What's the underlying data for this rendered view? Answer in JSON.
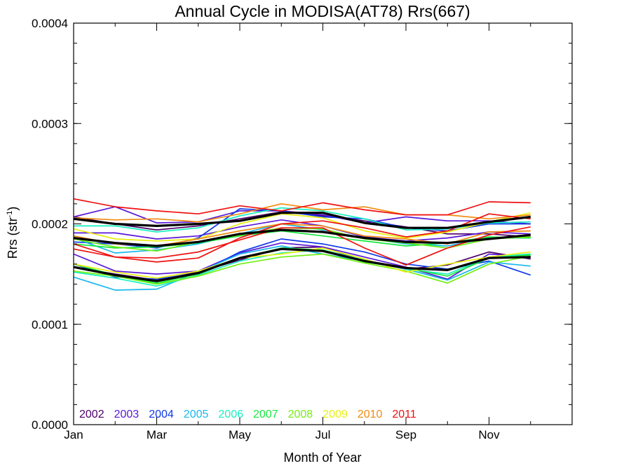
{
  "chart_data": {
    "type": "line",
    "title": "Annual Cycle in MODISA(AT78) Rrs(667)",
    "xlabel": "Month of Year",
    "ylabel": "Rrs (str",
    "ylabel_superscript": "-1",
    "ylabel_close": ")",
    "xlim": [
      1,
      13
    ],
    "ylim": [
      0.0,
      0.0004
    ],
    "y_ticks": [
      0.0,
      0.0001,
      0.0002,
      0.0003,
      0.0004
    ],
    "y_tick_labels": [
      "0.0000",
      "0.0001",
      "0.0002",
      "0.0003",
      "0.0004"
    ],
    "x_ticks": [
      1,
      3,
      5,
      7,
      9,
      11
    ],
    "x_tick_labels": [
      "Jan",
      "Mar",
      "May",
      "Jul",
      "Sep",
      "Nov"
    ],
    "x": [
      1,
      2,
      3,
      4,
      5,
      6,
      7,
      8,
      9,
      10,
      11,
      12
    ],
    "grid": false,
    "legend_position": "bottom-left",
    "legend": [
      {
        "name": "2002",
        "color": "#4b0068"
      },
      {
        "name": "2003",
        "color": "#5a18d8"
      },
      {
        "name": "2004",
        "color": "#1038e8"
      },
      {
        "name": "2005",
        "color": "#18b8ec"
      },
      {
        "name": "2006",
        "color": "#18f0c0"
      },
      {
        "name": "2007",
        "color": "#18e840"
      },
      {
        "name": "2008",
        "color": "#70f010"
      },
      {
        "name": "2009",
        "color": "#e8f010"
      },
      {
        "name": "2010",
        "color": "#f08c10"
      },
      {
        "name": "2011",
        "color": "#f01010"
      }
    ],
    "series": [
      {
        "color": "#4b0068",
        "width": 1.7,
        "values": [
          0.000207,
          0.0002,
          0.000194,
          0.000198,
          0.000205,
          0.000212,
          0.000208,
          0.000203,
          0.000197,
          0.00019,
          0.00019,
          0.000187
        ]
      },
      {
        "color": "#4b0068",
        "width": 1.7,
        "values": [
          0.000157,
          0.00015,
          0.000144,
          0.000152,
          0.000164,
          0.000176,
          0.000177,
          0.000163,
          0.000155,
          0.000159,
          0.000172,
          0.000165
        ]
      },
      {
        "color": "#5a18d8",
        "width": 1.7,
        "values": [
          0.000207,
          0.000217,
          0.000201,
          0.000202,
          0.000213,
          0.000213,
          0.000209,
          0.000201,
          0.000207,
          0.000203,
          0.000203,
          0.0002
        ]
      },
      {
        "color": "#5a18d8",
        "width": 1.7,
        "values": [
          0.00017,
          0.000153,
          0.00015,
          0.000153,
          0.000171,
          0.000181,
          0.000177,
          0.000167,
          0.000157,
          0.000145,
          0.00017,
          0.000167
        ]
      },
      {
        "color": "#5a18d8",
        "width": 1.7,
        "values": [
          0.000191,
          0.000191,
          0.000185,
          0.000188,
          0.000197,
          0.000204,
          0.000198,
          0.000187,
          0.000183,
          0.000186,
          0.000192,
          0.00019
        ]
      },
      {
        "color": "#1038e8",
        "width": 1.7,
        "values": [
          0.000182,
          0.00018,
          0.000176,
          0.000186,
          0.000215,
          0.000213,
          0.000207,
          0.000205,
          0.000196,
          0.000193,
          0.0002,
          0.0002
        ]
      },
      {
        "color": "#1038e8",
        "width": 1.7,
        "values": [
          0.00016,
          0.000147,
          0.000145,
          0.000151,
          0.000172,
          0.000185,
          0.00018,
          0.000172,
          0.00016,
          0.000155,
          0.000163,
          0.000149
        ]
      },
      {
        "color": "#18b8ec",
        "width": 1.7,
        "values": [
          0.000147,
          0.000134,
          0.000135,
          0.000152,
          0.00017,
          0.000178,
          0.00017,
          0.000163,
          0.000155,
          0.000144,
          0.000162,
          0.000158
        ]
      },
      {
        "color": "#18b8ec",
        "width": 1.7,
        "values": [
          0.000186,
          0.000171,
          0.000174,
          0.00018,
          0.00019,
          0.0002,
          0.000194,
          0.000186,
          0.00018,
          0.000178,
          0.000186,
          0.000186
        ]
      },
      {
        "color": "#18f0c0",
        "width": 1.7,
        "values": [
          0.000198,
          0.000198,
          0.000192,
          0.000196,
          0.000208,
          0.000216,
          0.000213,
          0.000205,
          0.000194,
          0.000195,
          0.000201,
          0.000202
        ]
      },
      {
        "color": "#18f0c0",
        "width": 1.7,
        "values": [
          0.000152,
          0.000146,
          0.000138,
          0.000149,
          0.000163,
          0.000171,
          0.000174,
          0.000164,
          0.000155,
          0.00015,
          0.000167,
          0.00017
        ]
      },
      {
        "color": "#18e840",
        "width": 1.7,
        "values": [
          0.00018,
          0.000176,
          0.000177,
          0.000181,
          0.000188,
          0.000193,
          0.000188,
          0.000183,
          0.000178,
          0.000181,
          0.000187,
          0.000186
        ]
      },
      {
        "color": "#18e840",
        "width": 1.7,
        "values": [
          0.00016,
          0.000149,
          0.000141,
          0.00015,
          0.000166,
          0.000176,
          0.000174,
          0.000162,
          0.000156,
          0.000148,
          0.000166,
          0.000169
        ]
      },
      {
        "color": "#70f010",
        "width": 1.7,
        "values": [
          0.000153,
          0.000148,
          0.00014,
          0.000148,
          0.00016,
          0.000167,
          0.00017,
          0.000161,
          0.000153,
          0.000141,
          0.00016,
          0.000168
        ]
      },
      {
        "color": "#70f010",
        "width": 1.7,
        "values": [
          0.000185,
          0.000177,
          0.000173,
          0.000182,
          0.000189,
          0.000196,
          0.000195,
          0.000185,
          0.000181,
          0.000176,
          0.000185,
          0.000187
        ]
      },
      {
        "color": "#e8f010",
        "width": 1.7,
        "values": [
          0.00016,
          0.000152,
          0.000146,
          0.000153,
          0.000166,
          0.00017,
          0.000176,
          0.000165,
          0.000152,
          0.00016,
          0.000167,
          0.000172
        ]
      },
      {
        "color": "#e8f010",
        "width": 1.7,
        "values": [
          0.000195,
          0.000185,
          0.000183,
          0.000185,
          0.0002,
          0.00021,
          0.000206,
          0.000193,
          0.000186,
          0.000192,
          0.000202,
          0.000211
        ]
      },
      {
        "color": "#f08c10",
        "width": 1.7,
        "values": [
          0.000206,
          0.000204,
          0.000205,
          0.000202,
          0.00021,
          0.00022,
          0.000214,
          0.000217,
          0.000209,
          0.000209,
          0.000205,
          0.000209
        ]
      },
      {
        "color": "#f08c10",
        "width": 1.7,
        "values": [
          0.000188,
          0.00018,
          0.000178,
          0.000185,
          0.000193,
          0.0002,
          0.000198,
          0.000188,
          0.000185,
          0.00018,
          0.000192,
          0.000193
        ]
      },
      {
        "color": "#f01010",
        "width": 1.7,
        "values": [
          0.000225,
          0.000217,
          0.000213,
          0.00021,
          0.000218,
          0.000213,
          0.000221,
          0.000214,
          0.000209,
          0.000209,
          0.000222,
          0.000221
        ]
      },
      {
        "color": "#f01010",
        "width": 1.7,
        "values": [
          0.00018,
          0.000167,
          0.000162,
          0.000166,
          0.000186,
          0.0002,
          0.000203,
          0.000196,
          0.000187,
          0.000193,
          0.00021,
          0.000205
        ]
      },
      {
        "color": "#f01010",
        "width": 1.7,
        "values": [
          0.000175,
          0.000167,
          0.000166,
          0.000172,
          0.000184,
          0.000196,
          0.000196,
          0.000176,
          0.000159,
          0.000176,
          0.000189,
          0.000197
        ]
      },
      {
        "color": "#000000",
        "width": 3.2,
        "values": [
          0.000205,
          0.0002,
          0.000198,
          0.0002,
          0.000203,
          0.000211,
          0.000211,
          0.000201,
          0.000196,
          0.000196,
          0.000202,
          0.000207
        ]
      },
      {
        "color": "#000000",
        "width": 3.2,
        "values": [
          0.000186,
          0.000181,
          0.000178,
          0.000182,
          0.00019,
          0.000194,
          0.000192,
          0.000186,
          0.000182,
          0.000181,
          0.000185,
          0.000189
        ]
      },
      {
        "color": "#000000",
        "width": 3.2,
        "values": [
          0.000157,
          0.000149,
          0.000143,
          0.000151,
          0.000166,
          0.000175,
          0.000173,
          0.000163,
          0.000156,
          0.000154,
          0.000166,
          0.000167
        ]
      }
    ]
  }
}
